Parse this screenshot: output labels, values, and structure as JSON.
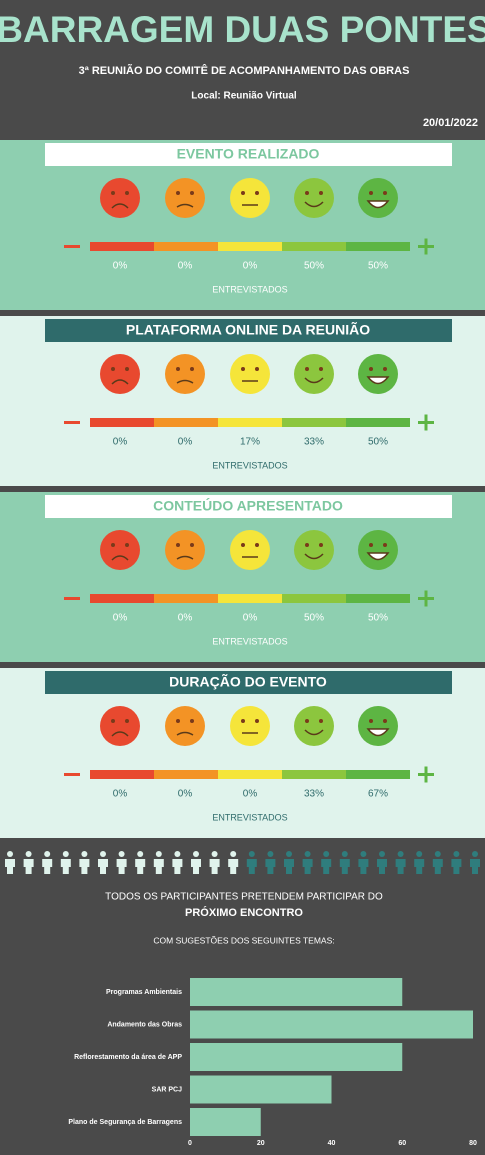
{
  "header": {
    "title": "BARRAGEM DUAS PONTES",
    "subtitle": "3ª REUNIÃO DO COMITÊ DE ACOMPANHAMENTO DAS OBRAS",
    "location": "Local: Reunião Virtual",
    "date": "20/01/2022"
  },
  "sections": [
    {
      "title": "EVENTO REALIZADO",
      "ratings": [
        "0%",
        "0%",
        "0%",
        "50%",
        "50%"
      ],
      "caption": "ENTREVISTADOS"
    },
    {
      "title": "PLATAFORMA ONLINE DA REUNIÃO",
      "ratings": [
        "0%",
        "0%",
        "17%",
        "33%",
        "50%"
      ],
      "caption": "ENTREVISTADOS"
    },
    {
      "title": "CONTEÚDO APRESENTADO",
      "ratings": [
        "0%",
        "0%",
        "0%",
        "50%",
        "50%"
      ],
      "caption": "ENTREVISTADOS"
    },
    {
      "title": "DURAÇÃO DO EVENTO",
      "ratings": [
        "0%",
        "0%",
        "0%",
        "33%",
        "67%"
      ],
      "caption": "ENTREVISTADOS"
    }
  ],
  "footer": {
    "line1": "TODOS OS PARTICIPANTES PRETENDEM PARTICIPAR DO",
    "line2": "PRÓXIMO ENCONTRO",
    "line3": "COM SUGESTÕES DOS SEGUINTES TEMAS:"
  },
  "chart_data": {
    "type": "bar",
    "orientation": "horizontal",
    "categories": [
      "Programas Ambientais",
      "Andamento das Obras",
      "Reflorestamento da área de APP",
      "SAR PCJ",
      "Plano de Segurança de Barragens"
    ],
    "values": [
      60,
      80,
      60,
      40,
      20
    ],
    "color": "#8ecfb0",
    "xlim": [
      0,
      80
    ],
    "xticks": [
      0,
      20,
      40,
      60,
      80
    ],
    "grid": false
  }
}
